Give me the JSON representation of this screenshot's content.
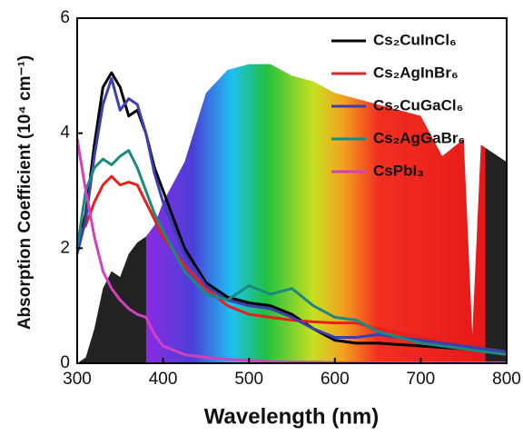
{
  "chart_data": {
    "type": "line",
    "x_label": "Wavelength (nm)",
    "y_label": "Absorption Coefficient (10⁴ cm⁻¹)",
    "x": [
      300,
      310,
      320,
      330,
      340,
      350,
      360,
      370,
      380,
      390,
      400,
      425,
      450,
      475,
      500,
      525,
      550,
      575,
      600,
      625,
      650,
      700,
      750,
      800
    ],
    "series": [
      {
        "name": "Cs₂CuInCl₆",
        "color": "#000000",
        "values": [
          2.0,
          2.6,
          3.8,
          4.8,
          5.05,
          4.8,
          4.3,
          4.4,
          4.0,
          3.4,
          3.0,
          2.0,
          1.4,
          1.15,
          1.05,
          1.0,
          0.85,
          0.6,
          0.4,
          0.35,
          0.35,
          0.3,
          0.25,
          0.18
        ]
      },
      {
        "name": "Cs₂AgInBr₆",
        "color": "#e8201c",
        "values": [
          2.2,
          2.4,
          2.8,
          3.1,
          3.25,
          3.1,
          3.15,
          3.1,
          2.8,
          2.5,
          2.2,
          1.7,
          1.3,
          1.0,
          0.85,
          0.8,
          0.75,
          0.72,
          0.7,
          0.7,
          0.6,
          0.45,
          0.3,
          0.2
        ]
      },
      {
        "name": "Cs₂CuGaCl₆",
        "color": "#3b3fb0",
        "values": [
          1.9,
          2.5,
          3.6,
          4.5,
          4.95,
          4.4,
          4.6,
          4.5,
          4.0,
          3.3,
          2.8,
          1.9,
          1.35,
          1.1,
          1.0,
          0.95,
          0.8,
          0.6,
          0.45,
          0.45,
          0.5,
          0.4,
          0.3,
          0.2
        ]
      },
      {
        "name": "Cs₂AgGaBr₆",
        "color": "#1a8a80",
        "values": [
          2.0,
          3.0,
          3.4,
          3.55,
          3.45,
          3.6,
          3.7,
          3.4,
          3.0,
          2.6,
          2.3,
          1.6,
          1.2,
          1.1,
          1.35,
          1.2,
          1.3,
          1.0,
          0.8,
          0.75,
          0.55,
          0.35,
          0.25,
          0.15
        ]
      },
      {
        "name": "CsPbI₃",
        "color": "#d040c0",
        "values": [
          3.9,
          3.0,
          2.2,
          1.6,
          1.3,
          1.1,
          0.95,
          0.85,
          0.8,
          0.5,
          0.3,
          0.15,
          0.1,
          0.07,
          0.05,
          0.03,
          0.02,
          0.02,
          0.01,
          0.01,
          0.01,
          0.01,
          0.01,
          0.01
        ]
      }
    ],
    "spectrum": {
      "x": [
        300,
        310,
        320,
        330,
        340,
        350,
        360,
        370,
        380,
        390,
        400,
        425,
        450,
        475,
        500,
        525,
        550,
        575,
        600,
        625,
        650,
        700,
        725,
        750,
        760,
        770,
        800
      ],
      "values": [
        0,
        0.1,
        0.6,
        1.3,
        1.6,
        1.5,
        1.9,
        2.1,
        2.2,
        2.4,
        2.8,
        3.5,
        4.7,
        5.1,
        5.2,
        5.2,
        5.0,
        4.9,
        4.7,
        4.6,
        4.5,
        4.3,
        3.6,
        3.9,
        0.5,
        3.8,
        3.5
      ]
    },
    "xlim": [
      300,
      800
    ],
    "xticks": [
      300,
      400,
      500,
      600,
      700,
      800
    ],
    "ylim": [
      0,
      6
    ],
    "yticks": [
      0,
      2,
      4,
      6
    ],
    "legend": "upper right"
  }
}
